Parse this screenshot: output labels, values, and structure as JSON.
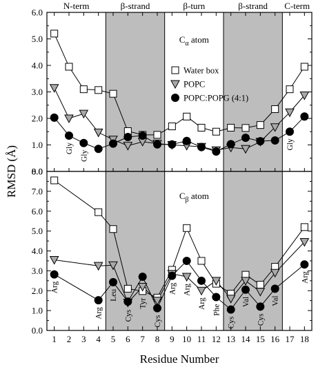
{
  "chart_data": {
    "type": "line",
    "xlabel": "Residue Number",
    "ylabel": "RMSD (Å)",
    "x": [
      1,
      2,
      3,
      4,
      5,
      6,
      7,
      8,
      9,
      10,
      11,
      12,
      13,
      14,
      15,
      16,
      17,
      18
    ],
    "xlim": [
      0.5,
      18.5
    ],
    "regions": [
      {
        "label": "N-term",
        "from": 0.5,
        "to": 4.5,
        "shaded": false
      },
      {
        "label": "β-strand",
        "from": 4.5,
        "to": 8.5,
        "shaded": true
      },
      {
        "label": "β-turn",
        "from": 8.5,
        "to": 12.5,
        "shaded": false
      },
      {
        "label": "β-strand",
        "from": 12.5,
        "to": 16.5,
        "shaded": true
      },
      {
        "label": "C-term",
        "from": 16.5,
        "to": 18.5,
        "shaded": false
      }
    ],
    "panels": [
      {
        "name": "top",
        "atom_label": {
          "main": "C",
          "sub": "α",
          "suffix": " atom"
        },
        "ylim": [
          0.0,
          6.0
        ],
        "yticks": [
          "0.0",
          "1.0",
          "2.0",
          "3.0",
          "4.0",
          "5.0",
          "6.0"
        ],
        "series": [
          {
            "name": "Water box",
            "marker": "square",
            "values": [
              5.2,
              3.95,
              3.1,
              3.07,
              2.93,
              1.52,
              1.38,
              1.38,
              1.7,
              2.07,
              1.65,
              1.5,
              1.65,
              1.64,
              1.75,
              2.35,
              3.1,
              3.95
            ]
          },
          {
            "name": "POPC",
            "marker": "triangle",
            "values": [
              3.15,
              2.0,
              2.18,
              1.47,
              1.2,
              0.97,
              1.12,
              1.05,
              1.0,
              0.97,
              0.93,
              0.8,
              0.9,
              0.85,
              1.12,
              1.67,
              2.23,
              2.87
            ]
          },
          {
            "name": "POPC:POPG (4:1)",
            "marker": "circle",
            "values": [
              2.03,
              1.35,
              1.07,
              0.85,
              1.05,
              1.3,
              1.35,
              1.02,
              1.02,
              1.15,
              0.92,
              0.75,
              1.03,
              1.27,
              1.14,
              1.17,
              1.5,
              2.07
            ]
          }
        ],
        "residue_labels": [
          {
            "text": "Gly",
            "x": 2
          },
          {
            "text": "Gly",
            "x": 3
          },
          {
            "text": "Gly",
            "x": 17
          }
        ]
      },
      {
        "name": "bottom",
        "atom_label": {
          "main": "C",
          "sub": "β",
          "suffix": " atom"
        },
        "ylim": [
          0.0,
          8.0
        ],
        "yticks": [
          "0.0",
          "1.0",
          "2.0",
          "3.0",
          "4.0",
          "5.0",
          "6.0",
          "7.0",
          "8.0"
        ],
        "series": [
          {
            "name": "Water box",
            "marker": "square",
            "values": [
              7.55,
              null,
              null,
              5.95,
              5.1,
              2.1,
              1.98,
              1.65,
              3.05,
              5.15,
              3.5,
              2.35,
              1.85,
              2.8,
              2.3,
              3.2,
              null,
              5.2
            ]
          },
          {
            "name": "POPC",
            "marker": "triangle",
            "values": [
              3.55,
              null,
              null,
              3.25,
              3.28,
              1.4,
              2.2,
              1.5,
              2.85,
              2.7,
              2.0,
              2.5,
              1.6,
              2.5,
              1.95,
              2.9,
              null,
              4.45
            ]
          },
          {
            "name": "POPC:POPG (4:1)",
            "marker": "circle",
            "values": [
              2.82,
              null,
              null,
              1.52,
              2.43,
              1.45,
              2.7,
              1.12,
              2.75,
              3.5,
              2.5,
              1.68,
              1.05,
              2.05,
              1.2,
              2.1,
              null,
              3.32
            ]
          }
        ],
        "residue_labels": [
          {
            "text": "Arg",
            "x": 1
          },
          {
            "text": "Arg",
            "x": 4
          },
          {
            "text": "Leu",
            "x": 5
          },
          {
            "text": "Cys",
            "x": 6
          },
          {
            "text": "Tyr",
            "x": 7
          },
          {
            "text": "Cys",
            "x": 8
          },
          {
            "text": "Arg",
            "x": 9
          },
          {
            "text": "Arg",
            "x": 10
          },
          {
            "text": "Arg",
            "x": 11
          },
          {
            "text": "Phe",
            "x": 12
          },
          {
            "text": "Cys",
            "x": 13
          },
          {
            "text": "Val",
            "x": 14
          },
          {
            "text": "Cys",
            "x": 15
          },
          {
            "text": "Val",
            "x": 16
          },
          {
            "text": "Arg",
            "x": 18
          }
        ]
      }
    ],
    "legend": {
      "position": "top-right of top panel",
      "entries": [
        "Water box",
        "POPC",
        "POPC:POPG (4:1)"
      ]
    },
    "colors": {
      "shade": "#bdbdbd",
      "square_fill": "#ffffff",
      "triangle_fill": "#a9a9a9",
      "circle_fill": "#000000",
      "line": "#000000"
    },
    "grid": false
  }
}
